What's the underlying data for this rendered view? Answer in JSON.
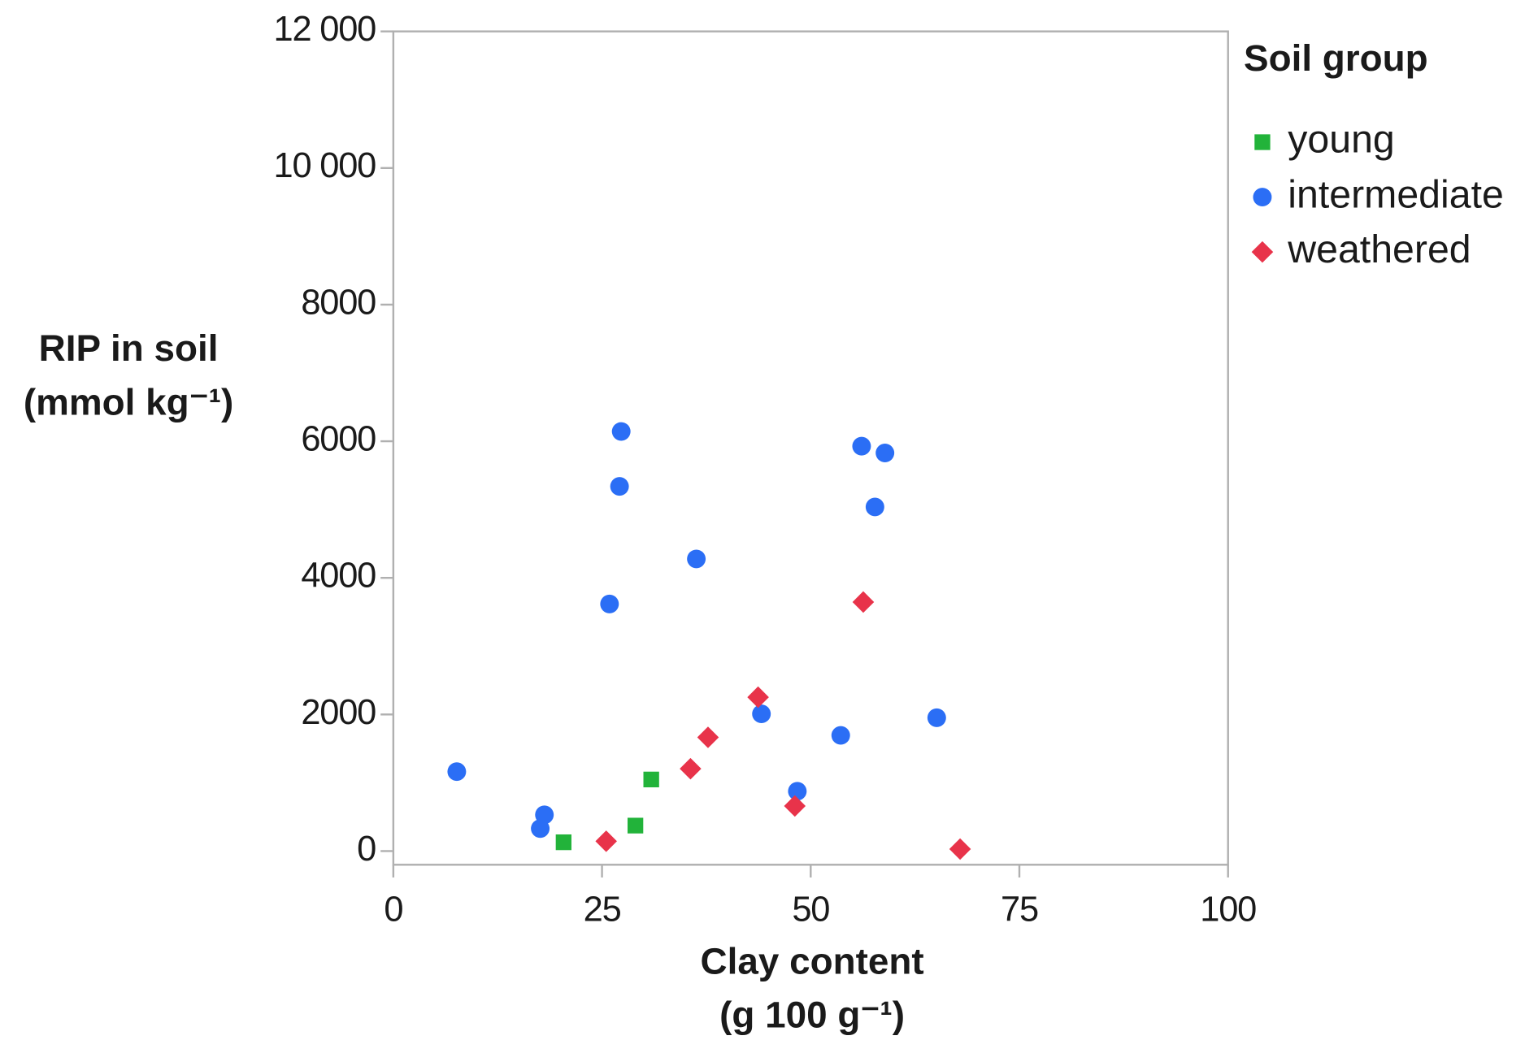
{
  "chart_data": {
    "type": "scatter",
    "xlabel": [
      "Clay content",
      "(g 100 g⁻¹)"
    ],
    "ylabel": [
      "RIP in soil",
      "(mmol kg⁻¹)"
    ],
    "legend_title": "Soil group",
    "legend": "right",
    "grid": false,
    "xlim": [
      0,
      100
    ],
    "xticks": [
      0,
      25,
      50,
      75,
      100
    ],
    "ylim": [
      -200,
      12000
    ],
    "yticks": [
      0,
      2000,
      4000,
      6000,
      8000,
      {
        "value": 10000,
        "label": "10 000"
      },
      {
        "value": 12000,
        "label": "12 000"
      }
    ],
    "series": [
      {
        "name": "young",
        "color": "#22b33a",
        "marker": "square",
        "x": [
          20.4,
          29.0,
          30.9
        ],
        "values": [
          129,
          373,
          1048
        ]
      },
      {
        "name": "intermediate",
        "color": "#2b6ef5",
        "marker": "circle",
        "x": [
          7.6,
          18.1,
          17.6,
          27.3,
          27.1,
          25.9,
          36.3,
          44.1,
          48.4,
          53.6,
          56.1,
          58.9,
          57.7,
          65.1
        ],
        "values": [
          1163,
          531,
          330,
          6143,
          5339,
          3617,
          4277,
          2009,
          876,
          1694,
          5928,
          5828,
          5038,
          1952
        ]
      },
      {
        "name": "weathered",
        "color": "#e8334a",
        "marker": "diamond",
        "x": [
          25.5,
          35.6,
          37.7,
          43.7,
          48.1,
          56.3,
          67.9
        ],
        "values": [
          144,
          1206,
          1665,
          2253,
          660,
          3646,
          29
        ]
      }
    ]
  }
}
